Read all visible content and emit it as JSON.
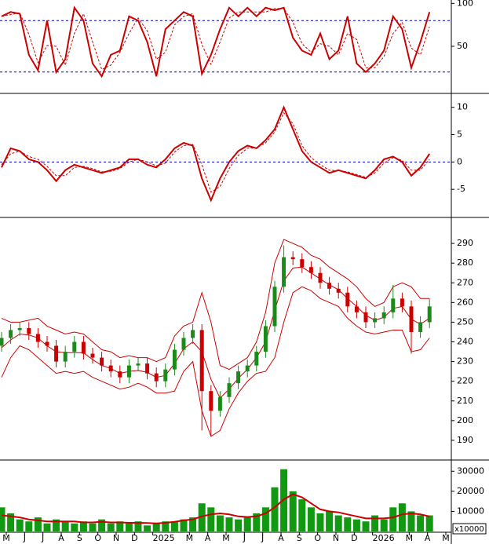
{
  "chart_data": [
    {
      "type": "line",
      "ylim": [
        -4,
        104
      ],
      "yticks": [
        50,
        100
      ],
      "levels": [
        80,
        20
      ],
      "level_color": "#0000aa",
      "series": [
        {
          "color": "#cc0000",
          "style": "solid",
          "values": [
            85,
            90,
            88,
            40,
            22,
            80,
            20,
            35,
            95,
            80,
            30,
            15,
            40,
            45,
            85,
            80,
            55,
            15,
            70,
            80,
            90,
            85,
            18,
            40,
            70,
            95,
            85,
            95,
            85,
            95,
            92,
            95,
            60,
            45,
            40,
            65,
            35,
            45,
            85,
            30,
            20,
            30,
            45,
            85,
            70,
            25,
            55,
            90
          ]
        },
        {
          "color": "#cc0000",
          "style": "dashed",
          "values": [
            85,
            87,
            89,
            64,
            31,
            51,
            50,
            28,
            65,
            88,
            55,
            23,
            28,
            43,
            65,
            83,
            68,
            35,
            43,
            75,
            85,
            88,
            52,
            29,
            55,
            83,
            90,
            90,
            90,
            90,
            94,
            94,
            78,
            53,
            43,
            53,
            50,
            40,
            65,
            58,
            25,
            25,
            38,
            65,
            78,
            48,
            40,
            73
          ]
        }
      ]
    },
    {
      "type": "line",
      "ylim": [
        -10,
        12.4
      ],
      "yticks": [
        10,
        5,
        0,
        -5
      ],
      "levels": [
        0
      ],
      "level_color": "#0000aa",
      "series": [
        {
          "color": "#cc0000",
          "style": "solid",
          "values": [
            -1,
            2.5,
            2,
            0.5,
            0,
            -1.5,
            -3.5,
            -1.5,
            -0.5,
            -1,
            -1.5,
            -2,
            -1.5,
            -1,
            0.5,
            0.5,
            -0.5,
            -1,
            0.5,
            2.5,
            3.5,
            3,
            -3,
            -7,
            -3,
            0,
            2,
            3,
            2.5,
            4,
            6,
            10,
            6,
            2,
            0,
            -1,
            -2,
            -1.5,
            -2,
            -2.5,
            -3,
            -1.5,
            0.5,
            1,
            0,
            -2.5,
            -1,
            1.5
          ]
        },
        {
          "color": "#cc0000",
          "style": "dashed",
          "values": [
            -0.5,
            1.5,
            2,
            1,
            0.5,
            -0.8,
            -2.5,
            -2.5,
            -1,
            -0.8,
            -1.2,
            -1.8,
            -1.7,
            -1.2,
            0,
            0.5,
            0,
            -0.7,
            -0.2,
            1.8,
            3,
            3.2,
            -0.5,
            -5.5,
            -4.5,
            -1.2,
            1.2,
            2.5,
            2.6,
            3.5,
            5.5,
            9,
            7,
            3,
            0.8,
            -0.5,
            -1.5,
            -1.6,
            -1.8,
            -2.3,
            -2.8,
            -2,
            -0.2,
            0.8,
            0.3,
            -1.5,
            -1.5,
            0.5
          ]
        }
      ]
    },
    {
      "type": "candlestick",
      "ylim": [
        180.4,
        302.8
      ],
      "yticks": [
        290,
        280,
        270,
        260,
        250,
        240,
        230,
        220,
        210,
        200,
        190
      ],
      "up_color": "#1a8a1a",
      "down_color": "#cc0000",
      "band_color": "#cc0000",
      "open": [
        238,
        242,
        246,
        247,
        244,
        240,
        238,
        230,
        235,
        240,
        234,
        232,
        228,
        225,
        222,
        228,
        229,
        224,
        220,
        226,
        236,
        242,
        246,
        215,
        205,
        212,
        219,
        225,
        228,
        235,
        248,
        268,
        283,
        282,
        278,
        275,
        270,
        267,
        265,
        258,
        255,
        250,
        252,
        255,
        262,
        258,
        245,
        250
      ],
      "high": [
        245,
        249,
        250,
        250,
        247,
        243,
        241,
        238,
        243,
        243,
        237,
        235,
        231,
        228,
        231,
        232,
        232,
        227,
        229,
        239,
        245,
        249,
        249,
        218,
        215,
        222,
        228,
        231,
        238,
        251,
        271,
        289,
        286,
        285,
        281,
        278,
        273,
        270,
        268,
        261,
        258,
        255,
        258,
        269,
        265,
        261,
        253,
        262
      ],
      "low": [
        235,
        239,
        243,
        241,
        237,
        235,
        227,
        227,
        232,
        231,
        229,
        225,
        222,
        219,
        219,
        225,
        221,
        217,
        217,
        223,
        233,
        239,
        195,
        192,
        202,
        209,
        216,
        222,
        225,
        232,
        245,
        265,
        279,
        275,
        272,
        267,
        264,
        262,
        255,
        252,
        247,
        247,
        249,
        252,
        255,
        234,
        242,
        247
      ],
      "close": [
        242,
        246,
        247,
        244,
        240,
        238,
        230,
        235,
        240,
        234,
        232,
        228,
        225,
        222,
        228,
        229,
        224,
        220,
        226,
        236,
        242,
        246,
        215,
        205,
        212,
        219,
        225,
        228,
        235,
        248,
        268,
        283,
        282,
        278,
        275,
        270,
        267,
        265,
        258,
        255,
        250,
        252,
        255,
        262,
        258,
        245,
        250,
        258
      ],
      "bands": [
        {
          "values": [
            252,
            250,
            250,
            251,
            252,
            248,
            246,
            244,
            245,
            244,
            240,
            236,
            235,
            232,
            233,
            232,
            232,
            230,
            232,
            243,
            248,
            250,
            265,
            250,
            228,
            226,
            229,
            232,
            240,
            255,
            280,
            292,
            290,
            288,
            284,
            282,
            278,
            275,
            272,
            268,
            262,
            258,
            260,
            268,
            270,
            268,
            262,
            262
          ]
        },
        {
          "values": [
            237,
            241,
            244,
            243.5,
            242,
            238,
            235,
            234.5,
            234.5,
            234.5,
            231,
            228,
            226.5,
            224,
            225,
            225.5,
            224.5,
            222,
            223,
            229,
            236.5,
            240,
            235,
            221,
            211.5,
            216,
            221.5,
            226,
            232,
            240,
            256,
            271,
            277.5,
            278,
            275,
            272,
            269,
            266.5,
            262,
            258,
            253.5,
            251,
            252.5,
            257,
            258,
            251.5,
            249,
            252
          ]
        },
        {
          "values": [
            222,
            232,
            238,
            236,
            232,
            228,
            224,
            225,
            224,
            225,
            222,
            220,
            218,
            216,
            217,
            219,
            217,
            214,
            214,
            215,
            225,
            230,
            205,
            192,
            195,
            206,
            214,
            220,
            224,
            225,
            232,
            250,
            265,
            268,
            266,
            262,
            260,
            258,
            252,
            248,
            245,
            244,
            245,
            246,
            246,
            235,
            236,
            242
          ]
        }
      ]
    },
    {
      "type": "bar",
      "ylim": [
        0,
        35200
      ],
      "yticks": [
        30000,
        20000,
        10000
      ],
      "unit_label": "x10000",
      "color": "#119911",
      "ma_color": "#cc0000",
      "values": [
        12000,
        9000,
        6000,
        5000,
        7000,
        4000,
        6000,
        5000,
        4000,
        5000,
        4000,
        6000,
        4000,
        5000,
        4000,
        5000,
        3000,
        4000,
        5000,
        5000,
        6000,
        7000,
        14000,
        12000,
        8000,
        7000,
        6000,
        7000,
        9000,
        12000,
        22000,
        31000,
        20000,
        16000,
        12000,
        9000,
        10000,
        8000,
        7000,
        6000,
        5000,
        8000,
        6000,
        12000,
        14000,
        10000,
        8000,
        8000
      ],
      "ma": [
        8000,
        7500,
        7000,
        6000,
        5500,
        5000,
        5000,
        5000,
        5000,
        4500,
        4500,
        4800,
        4500,
        4500,
        4300,
        4300,
        4200,
        4000,
        4300,
        4800,
        5500,
        6000,
        7500,
        8500,
        9000,
        8500,
        7500,
        7200,
        7500,
        9000,
        12000,
        16000,
        18500,
        17000,
        14000,
        11000,
        10000,
        9500,
        8500,
        7500,
        6500,
        6500,
        6500,
        7000,
        8500,
        9000,
        8500,
        7500
      ],
      "month_labels": [
        "M",
        "J",
        "J",
        "A",
        "S",
        "O",
        "N",
        "D",
        "2025",
        null,
        "M",
        "A",
        "M",
        "J",
        "J",
        "A",
        "S",
        "O",
        "N",
        "D",
        "2026",
        null,
        "M",
        "A",
        "M"
      ]
    }
  ]
}
